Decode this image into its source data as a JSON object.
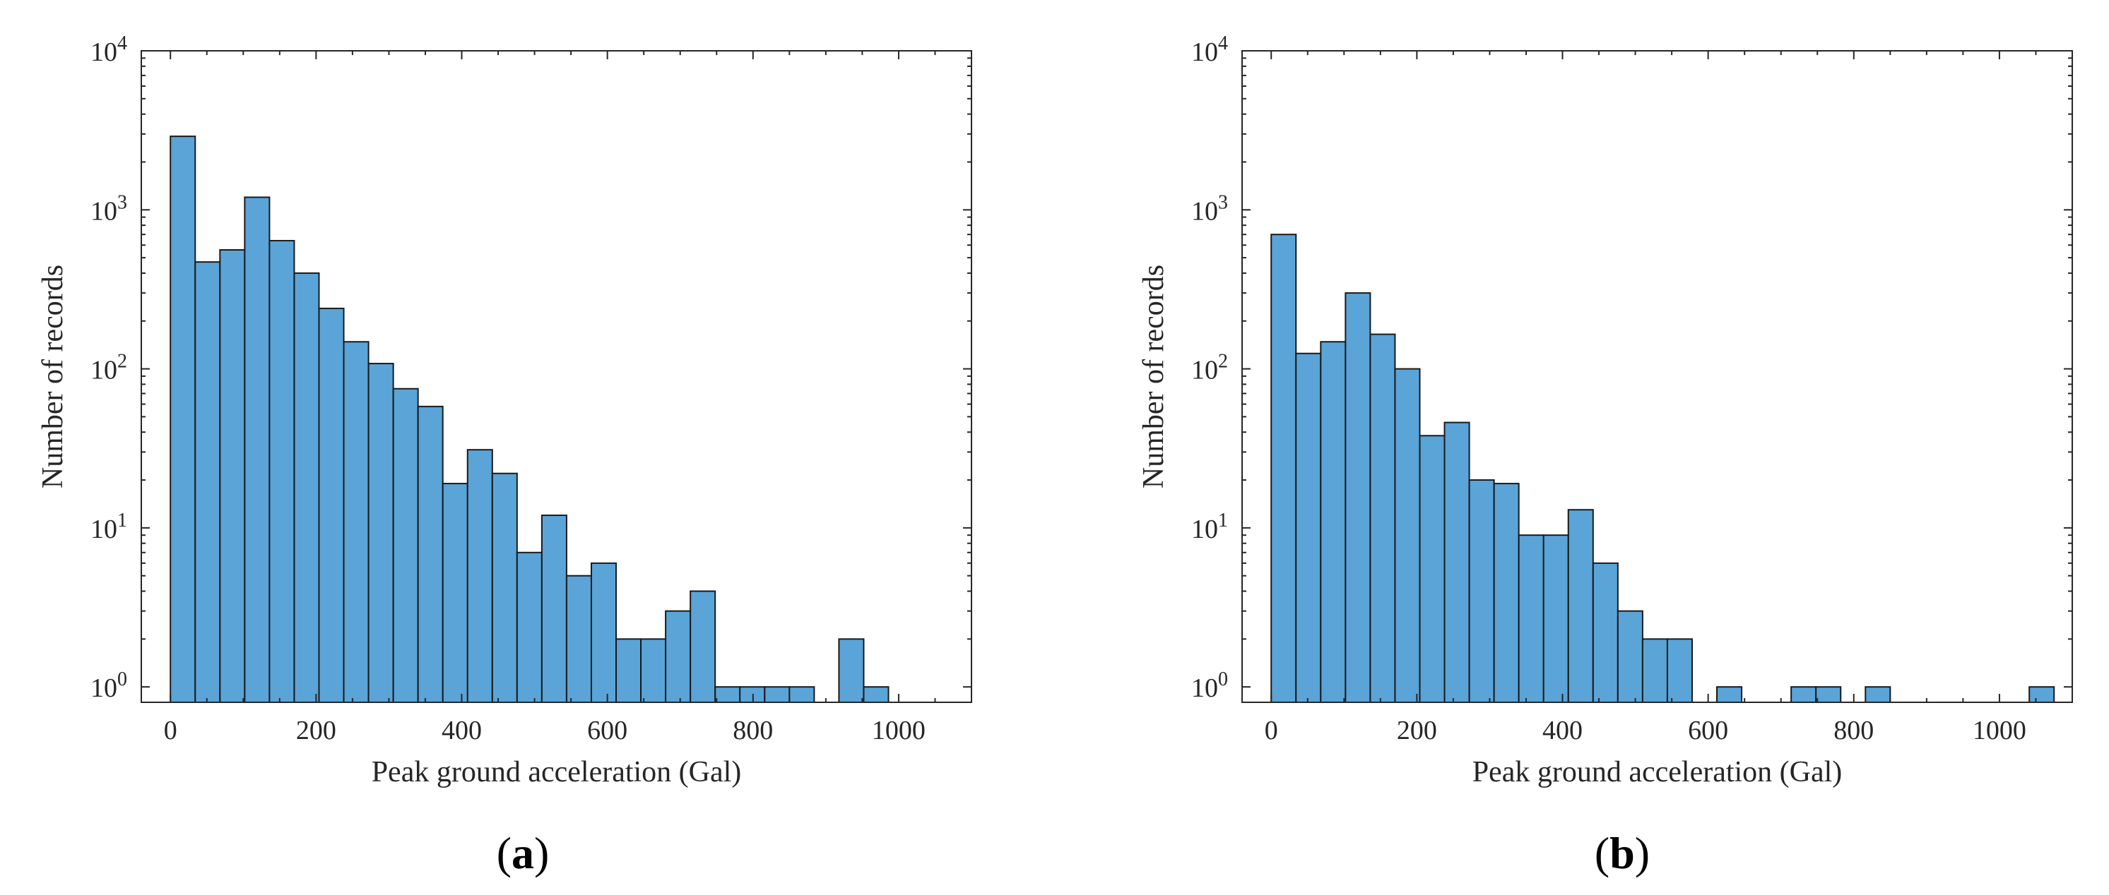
{
  "chart_data": [
    {
      "id": "a",
      "type": "bar",
      "panel_label": "a",
      "xlabel": "Peak ground acceleration (Gal)",
      "ylabel": "Number of records",
      "yscale": "log",
      "xlim": [
        -40,
        1100
      ],
      "ylim": [
        0.8,
        10000
      ],
      "xticks": [
        0,
        200,
        400,
        600,
        800,
        1000
      ],
      "ytick_base": "10",
      "ytick_exponents": [
        "0",
        "1",
        "2",
        "3",
        "4"
      ],
      "bin_width": 34,
      "bins": [
        {
          "x0": 0,
          "value": 2900
        },
        {
          "x0": 34,
          "value": 470
        },
        {
          "x0": 68,
          "value": 560
        },
        {
          "x0": 102,
          "value": 1200
        },
        {
          "x0": 136,
          "value": 640
        },
        {
          "x0": 170,
          "value": 400
        },
        {
          "x0": 204,
          "value": 240
        },
        {
          "x0": 238,
          "value": 148
        },
        {
          "x0": 272,
          "value": 108
        },
        {
          "x0": 306,
          "value": 75
        },
        {
          "x0": 340,
          "value": 58
        },
        {
          "x0": 374,
          "value": 19
        },
        {
          "x0": 408,
          "value": 31
        },
        {
          "x0": 442,
          "value": 22
        },
        {
          "x0": 476,
          "value": 7
        },
        {
          "x0": 510,
          "value": 12
        },
        {
          "x0": 544,
          "value": 5
        },
        {
          "x0": 578,
          "value": 6
        },
        {
          "x0": 612,
          "value": 2
        },
        {
          "x0": 646,
          "value": 2
        },
        {
          "x0": 680,
          "value": 3
        },
        {
          "x0": 714,
          "value": 4
        },
        {
          "x0": 748,
          "value": 1
        },
        {
          "x0": 782,
          "value": 1
        },
        {
          "x0": 816,
          "value": 1
        },
        {
          "x0": 850,
          "value": 1
        },
        {
          "x0": 884,
          "value": 0
        },
        {
          "x0": 918,
          "value": 2
        },
        {
          "x0": 952,
          "value": 1
        }
      ]
    },
    {
      "id": "b",
      "type": "bar",
      "panel_label": "b",
      "xlabel": "Peak ground acceleration (Gal)",
      "ylabel": "Number of records",
      "yscale": "log",
      "xlim": [
        -40,
        1100
      ],
      "ylim": [
        0.8,
        10000
      ],
      "xticks": [
        0,
        200,
        400,
        600,
        800,
        1000
      ],
      "ytick_base": "10",
      "ytick_exponents": [
        "0",
        "1",
        "2",
        "3",
        "4"
      ],
      "bin_width": 34,
      "bins": [
        {
          "x0": 0,
          "value": 700
        },
        {
          "x0": 34,
          "value": 125
        },
        {
          "x0": 68,
          "value": 148
        },
        {
          "x0": 102,
          "value": 300
        },
        {
          "x0": 136,
          "value": 165
        },
        {
          "x0": 170,
          "value": 100
        },
        {
          "x0": 204,
          "value": 38
        },
        {
          "x0": 238,
          "value": 46
        },
        {
          "x0": 272,
          "value": 20
        },
        {
          "x0": 306,
          "value": 19
        },
        {
          "x0": 340,
          "value": 9
        },
        {
          "x0": 374,
          "value": 9
        },
        {
          "x0": 408,
          "value": 13
        },
        {
          "x0": 442,
          "value": 6
        },
        {
          "x0": 476,
          "value": 3
        },
        {
          "x0": 510,
          "value": 2
        },
        {
          "x0": 544,
          "value": 2
        },
        {
          "x0": 578,
          "value": 0
        },
        {
          "x0": 612,
          "value": 1
        },
        {
          "x0": 646,
          "value": 0
        },
        {
          "x0": 680,
          "value": 0
        },
        {
          "x0": 714,
          "value": 1
        },
        {
          "x0": 748,
          "value": 1
        },
        {
          "x0": 782,
          "value": 0
        },
        {
          "x0": 816,
          "value": 1
        },
        {
          "x0": 1041,
          "value": 1
        }
      ]
    }
  ]
}
